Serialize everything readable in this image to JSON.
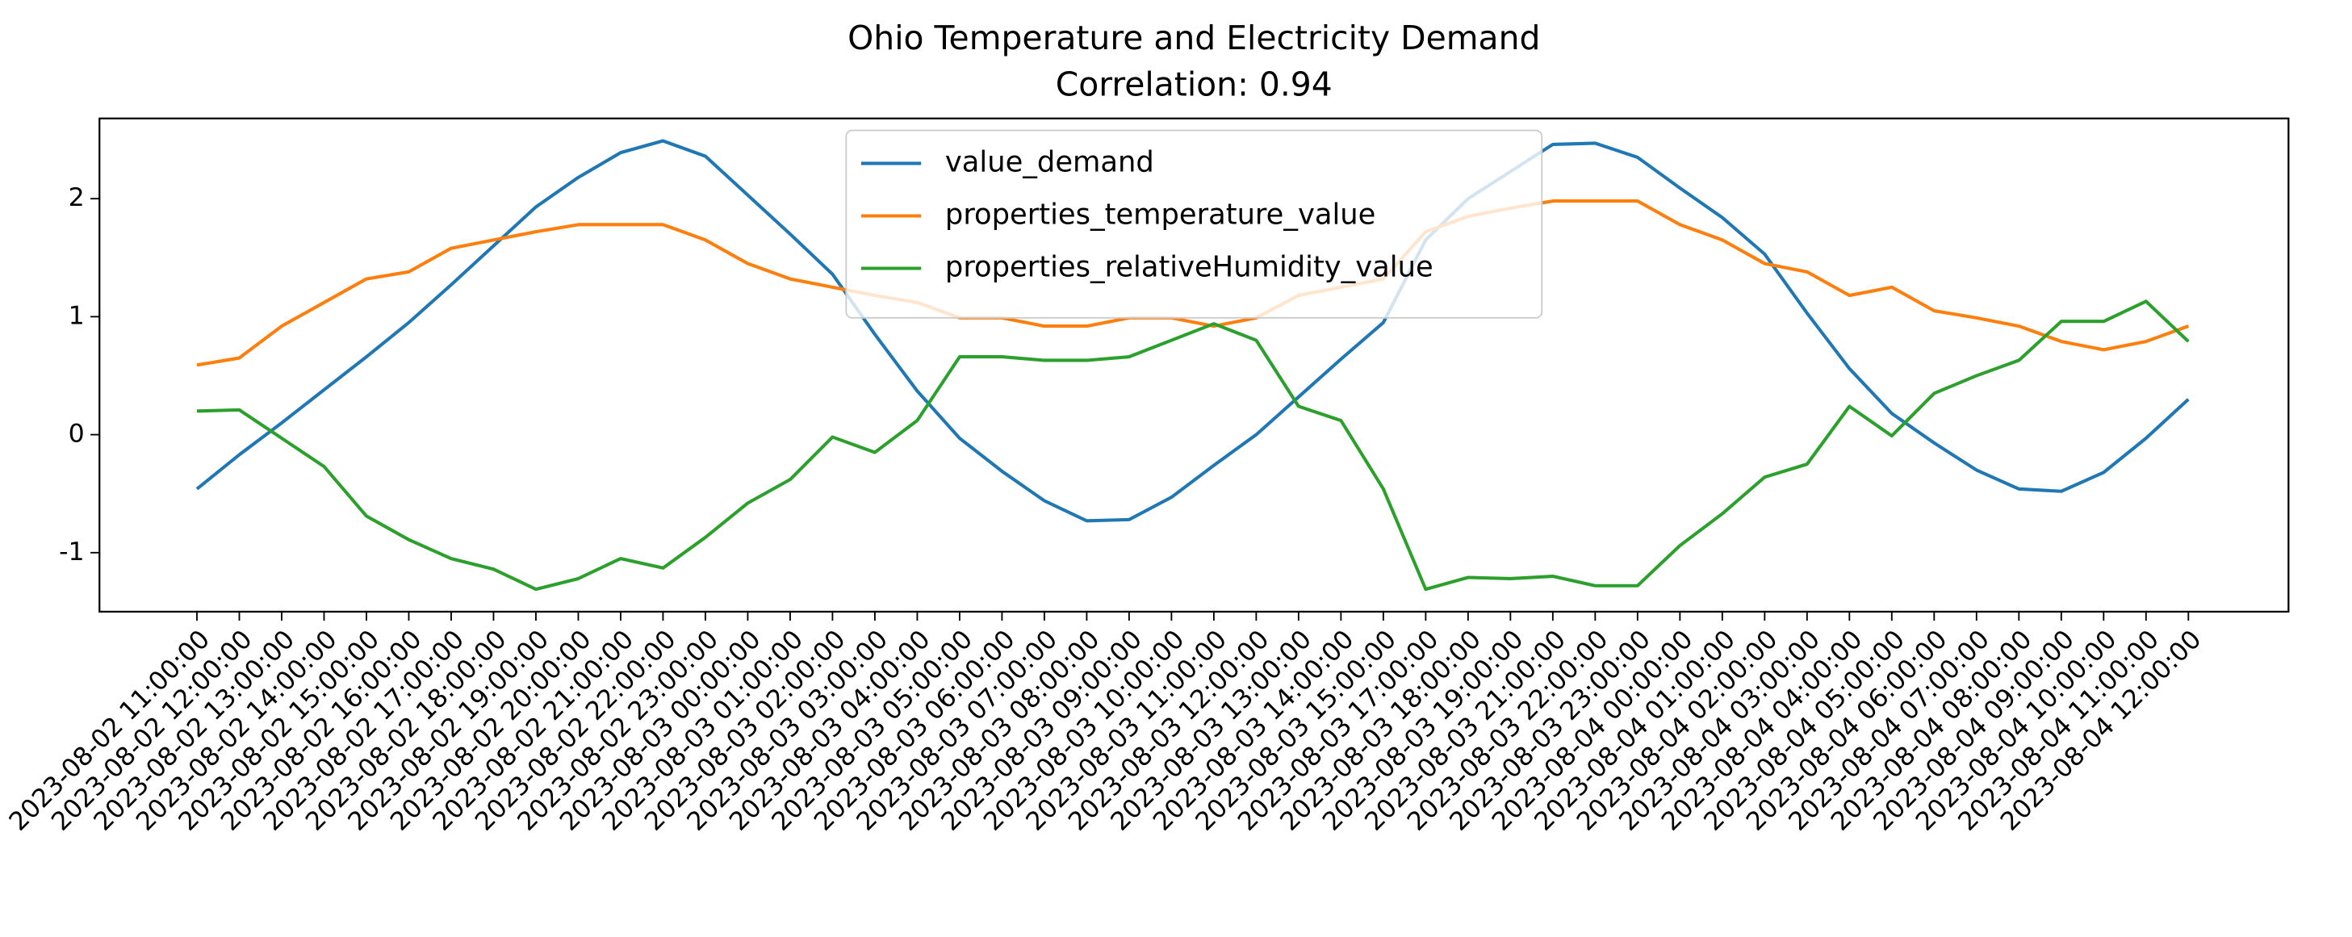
{
  "chart_data": {
    "type": "line",
    "title": "Ohio Temperature and Electricity Demand",
    "subtitle": "Correlation: 0.94",
    "categories": [
      "2023-08-02 11:00:00",
      "2023-08-02 12:00:00",
      "2023-08-02 13:00:00",
      "2023-08-02 14:00:00",
      "2023-08-02 15:00:00",
      "2023-08-02 16:00:00",
      "2023-08-02 17:00:00",
      "2023-08-02 18:00:00",
      "2023-08-02 19:00:00",
      "2023-08-02 20:00:00",
      "2023-08-02 21:00:00",
      "2023-08-02 22:00:00",
      "2023-08-02 23:00:00",
      "2023-08-03 00:00:00",
      "2023-08-03 01:00:00",
      "2023-08-03 02:00:00",
      "2023-08-03 03:00:00",
      "2023-08-03 04:00:00",
      "2023-08-03 05:00:00",
      "2023-08-03 06:00:00",
      "2023-08-03 07:00:00",
      "2023-08-03 08:00:00",
      "2023-08-03 09:00:00",
      "2023-08-03 10:00:00",
      "2023-08-03 11:00:00",
      "2023-08-03 12:00:00",
      "2023-08-03 13:00:00",
      "2023-08-03 14:00:00",
      "2023-08-03 15:00:00",
      "2023-08-03 17:00:00",
      "2023-08-03 18:00:00",
      "2023-08-03 19:00:00",
      "2023-08-03 21:00:00",
      "2023-08-03 22:00:00",
      "2023-08-03 23:00:00",
      "2023-08-04 00:00:00",
      "2023-08-04 01:00:00",
      "2023-08-04 02:00:00",
      "2023-08-04 03:00:00",
      "2023-08-04 04:00:00",
      "2023-08-04 05:00:00",
      "2023-08-04 06:00:00",
      "2023-08-04 07:00:00",
      "2023-08-04 08:00:00",
      "2023-08-04 09:00:00",
      "2023-08-04 10:00:00",
      "2023-08-04 11:00:00",
      "2023-08-04 12:00:00"
    ],
    "series": [
      {
        "name": "value_demand",
        "color": "#1f77b4",
        "values": [
          -0.46,
          -0.17,
          0.1,
          0.38,
          0.66,
          0.95,
          1.27,
          1.6,
          1.93,
          2.18,
          2.39,
          2.49,
          2.36,
          2.03,
          1.7,
          1.36,
          0.85,
          0.37,
          -0.03,
          -0.31,
          -0.56,
          -0.73,
          -0.72,
          -0.53,
          -0.26,
          0.0,
          0.32,
          0.64,
          0.95,
          1.65,
          2.0,
          2.23,
          2.46,
          2.47,
          2.35,
          2.09,
          1.84,
          1.53,
          1.03,
          0.56,
          0.18,
          -0.07,
          -0.3,
          -0.46,
          -0.48,
          -0.32,
          -0.03,
          0.3
        ]
      },
      {
        "name": "properties_temperature_value",
        "color": "#ff7f0e",
        "values": [
          0.59,
          0.65,
          0.92,
          1.12,
          1.32,
          1.38,
          1.58,
          1.65,
          1.72,
          1.78,
          1.78,
          1.78,
          1.65,
          1.45,
          1.32,
          1.25,
          1.18,
          1.12,
          0.99,
          0.99,
          0.92,
          0.92,
          0.99,
          0.99,
          0.92,
          0.99,
          1.18,
          1.25,
          1.32,
          1.72,
          1.85,
          1.92,
          1.98,
          1.98,
          1.98,
          1.78,
          1.65,
          1.45,
          1.38,
          1.18,
          1.25,
          1.05,
          0.99,
          0.92,
          0.79,
          0.72,
          0.79,
          0.92
        ]
      },
      {
        "name": "properties_relativeHumidity_value",
        "color": "#2ca02c",
        "values": [
          0.2,
          0.21,
          -0.03,
          -0.27,
          -0.69,
          -0.89,
          -1.05,
          -1.14,
          -1.31,
          -1.22,
          -1.05,
          -1.13,
          -0.87,
          -0.58,
          -0.38,
          -0.02,
          -0.15,
          0.12,
          0.66,
          0.66,
          0.63,
          0.63,
          0.66,
          0.8,
          0.94,
          0.8,
          0.24,
          0.12,
          -0.46,
          -1.31,
          -1.21,
          -1.22,
          -1.2,
          -1.28,
          -1.28,
          -0.94,
          -0.67,
          -0.36,
          -0.25,
          0.24,
          -0.01,
          0.35,
          0.5,
          0.63,
          0.96,
          0.96,
          1.13,
          0.79
        ]
      }
    ],
    "ylim": [
      -1.5,
      2.68
    ],
    "yticks": [
      -1,
      0,
      1,
      2
    ],
    "legend": "upper center"
  }
}
